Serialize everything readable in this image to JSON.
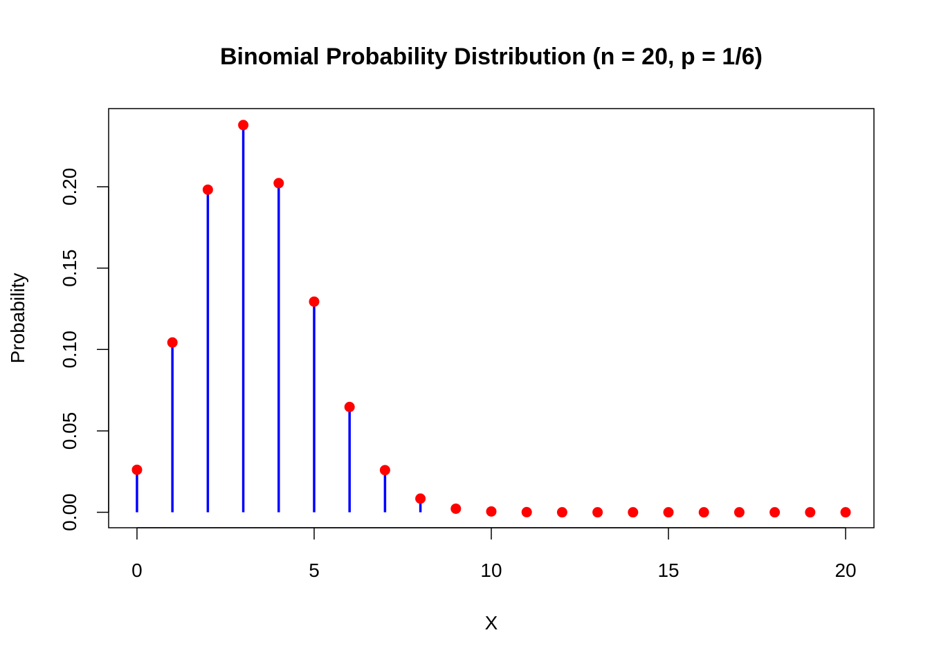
{
  "chart_data": {
    "type": "stem",
    "title": "Binomial Probability Distribution (n = 20, p = 1/6)",
    "xlabel": "X",
    "ylabel": "Probability",
    "xlim": [
      -0.8,
      20.8
    ],
    "ylim": [
      -0.0095,
      0.248
    ],
    "x_ticks": [
      0,
      5,
      10,
      15,
      20
    ],
    "y_ticks": [
      0.0,
      0.05,
      0.1,
      0.15,
      0.2
    ],
    "y_tick_labels": [
      "0.00",
      "0.05",
      "0.10",
      "0.15",
      "0.20"
    ],
    "x_tick_labels": [
      "0",
      "5",
      "10",
      "15",
      "20"
    ],
    "x": [
      0,
      1,
      2,
      3,
      4,
      5,
      6,
      7,
      8,
      9,
      10,
      11,
      12,
      13,
      14,
      15,
      16,
      17,
      18,
      19,
      20
    ],
    "values": [
      0.0261,
      0.1043,
      0.1982,
      0.2379,
      0.2022,
      0.1294,
      0.0647,
      0.0259,
      0.0084,
      0.0022,
      0.0005,
      0.0001,
      0.0,
      0.0,
      0.0,
      0.0,
      0.0,
      0.0,
      0.0,
      0.0,
      0.0
    ],
    "stem_color": "#0000ff",
    "point_color": "#ff0000",
    "grid": false,
    "legend": "none"
  }
}
